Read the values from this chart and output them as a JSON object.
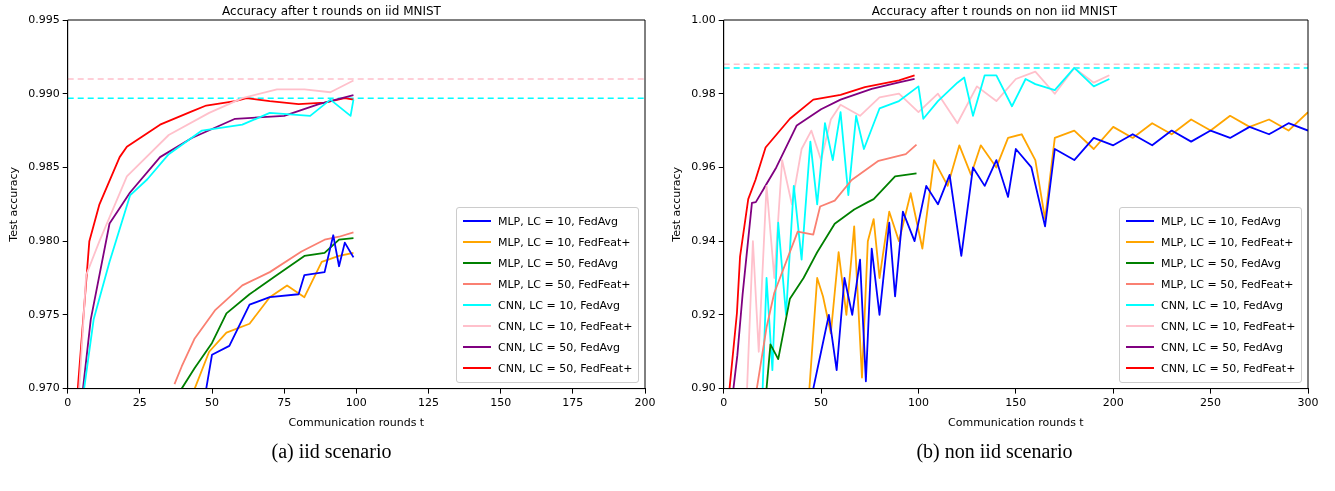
{
  "chart_data": [
    {
      "type": "line",
      "title": "Accuracy after t rounds on iid MNIST",
      "xlabel": "Communication rounds t",
      "ylabel": "Test accuracy",
      "annotations": [
        "(a) iid scenario"
      ],
      "xlim": [
        0,
        200
      ],
      "xticks": [
        0,
        25,
        50,
        75,
        100,
        125,
        150,
        175,
        200
      ],
      "ylim": [
        0.97,
        0.995
      ],
      "yticks": [
        {
          "value": 0.97,
          "label": "0.970"
        },
        {
          "value": 0.975,
          "label": "0.975"
        },
        {
          "value": 0.98,
          "label": "0.980"
        },
        {
          "value": 0.985,
          "label": "0.985"
        },
        {
          "value": 0.99,
          "label": "0.990"
        },
        {
          "value": 0.995,
          "label": "0.995"
        }
      ],
      "grid": false,
      "legend": "bottom right",
      "marker": "none",
      "line_style": "solid",
      "ref_lines": [
        {
          "axis": "y",
          "value": 0.991,
          "label": null,
          "color": "#ffc0cb",
          "line_style": "dashed"
        },
        {
          "axis": "y",
          "value": 0.9897,
          "label": null,
          "color": "#00ffff",
          "line_style": "dashed"
        }
      ],
      "series": [
        {
          "name": "MLP, LC = 10, FedAvg",
          "color": "#0000ff",
          "x": [
            48,
            50,
            56,
            63,
            70,
            80,
            82,
            89,
            92,
            94,
            96,
            99
          ],
          "values": [
            0.97,
            0.9723,
            0.9729,
            0.9757,
            0.9762,
            0.9764,
            0.9777,
            0.9779,
            0.9804,
            0.9783,
            0.9799,
            0.9789
          ]
        },
        {
          "name": "MLP, LC = 10, FedFeat+",
          "color": "#ffa500",
          "x": [
            44,
            49,
            55,
            63,
            70,
            76,
            82,
            88,
            94,
            99
          ],
          "values": [
            0.97,
            0.9725,
            0.9738,
            0.9744,
            0.9762,
            0.977,
            0.9762,
            0.9786,
            0.979,
            0.9792
          ]
        },
        {
          "name": "MLP, LC = 50, FedAvg",
          "color": "#008000",
          "x": [
            39.5,
            44,
            50,
            55,
            63,
            72.5,
            82,
            89,
            94,
            99
          ],
          "values": [
            0.97,
            0.9714,
            0.9731,
            0.9751,
            0.9764,
            0.9777,
            0.979,
            0.9792,
            0.9801,
            0.9802
          ]
        },
        {
          "name": "MLP, LC = 50, FedFeat+",
          "color": "#fa8072",
          "x": [
            37,
            39.5,
            44,
            51,
            60.5,
            70,
            81,
            89,
            94,
            99
          ],
          "values": [
            0.9703,
            0.9715,
            0.9734,
            0.9753,
            0.977,
            0.9779,
            0.9793,
            0.9801,
            0.9803,
            0.9806
          ]
        },
        {
          "name": "CNN, LC = 10, FedAvg",
          "color": "#00ffff",
          "x": [
            5.7,
            9,
            14.5,
            21.6,
            27.6,
            35,
            46.5,
            60.5,
            70,
            84,
            91,
            98,
            99
          ],
          "values": [
            0.97,
            0.9747,
            0.9786,
            0.9831,
            0.9842,
            0.9859,
            0.9875,
            0.9879,
            0.9887,
            0.9885,
            0.9896,
            0.9885,
            0.9896
          ]
        },
        {
          "name": "CNN, LC = 10, FedFeat+",
          "color": "#ffc0cb",
          "x": [
            4,
            6.4,
            11,
            20.5,
            35,
            49,
            60.5,
            72.5,
            82,
            91,
            99
          ],
          "values": [
            0.97,
            0.9777,
            0.98,
            0.9844,
            0.9872,
            0.9887,
            0.9897,
            0.9903,
            0.9903,
            0.9901,
            0.9909
          ]
        },
        {
          "name": "CNN, LC = 50, FedAvg",
          "color": "#800080",
          "x": [
            5.3,
            8,
            14.5,
            21.6,
            32,
            43,
            58,
            75,
            87,
            99
          ],
          "values": [
            0.97,
            0.9747,
            0.9812,
            0.9833,
            0.9857,
            0.987,
            0.9883,
            0.9885,
            0.9893,
            0.9899
          ]
        },
        {
          "name": "CNN, LC = 50, FedFeat+",
          "color": "#ff0000",
          "x": [
            3.5,
            7.5,
            11,
            18,
            20.5,
            32,
            43,
            48,
            58,
            62,
            70,
            80,
            89,
            96,
            99
          ],
          "values": [
            0.97,
            0.98,
            0.9825,
            0.9857,
            0.9864,
            0.9879,
            0.9888,
            0.9892,
            0.9895,
            0.9897,
            0.9895,
            0.9893,
            0.9894,
            0.9897,
            0.9896
          ]
        }
      ]
    },
    {
      "type": "line",
      "title": "Accuracy after t rounds on non iid MNIST",
      "xlabel": "Communication rounds t",
      "ylabel": "Test accuracy",
      "annotations": [
        "(b) non iid scenario"
      ],
      "xlim": [
        0,
        300
      ],
      "xticks": [
        0,
        50,
        100,
        150,
        200,
        250,
        300
      ],
      "ylim": [
        0.9,
        1.0
      ],
      "yticks": [
        {
          "value": 0.9,
          "label": "0.90"
        },
        {
          "value": 0.92,
          "label": "0.92"
        },
        {
          "value": 0.94,
          "label": "0.94"
        },
        {
          "value": 0.96,
          "label": "0.96"
        },
        {
          "value": 0.98,
          "label": "0.98"
        },
        {
          "value": 1.0,
          "label": "1.00"
        }
      ],
      "grid": false,
      "legend": "bottom right",
      "marker": "none",
      "line_style": "solid",
      "ref_lines": [
        {
          "axis": "y",
          "value": 0.988,
          "label": null,
          "color": "#ffc0cb",
          "line_style": "dashed"
        },
        {
          "axis": "y",
          "value": 0.987,
          "label": null,
          "color": "#00ffff",
          "line_style": "dashed"
        }
      ],
      "series": [
        {
          "name": "MLP, LC = 10, FedAvg",
          "color": "#0000ff",
          "x": [
            46,
            50,
            54,
            58,
            62,
            66,
            70,
            73,
            76,
            80,
            85,
            88,
            92,
            98,
            104,
            110,
            116,
            122,
            128,
            134,
            140,
            146,
            150,
            158,
            165,
            170,
            180,
            190,
            200,
            210,
            220,
            230,
            240,
            250,
            260,
            270,
            280,
            290,
            300
          ],
          "values": [
            0.9,
            0.91,
            0.92,
            0.905,
            0.93,
            0.92,
            0.935,
            0.902,
            0.938,
            0.92,
            0.945,
            0.925,
            0.948,
            0.94,
            0.955,
            0.95,
            0.958,
            0.936,
            0.96,
            0.955,
            0.962,
            0.952,
            0.965,
            0.96,
            0.944,
            0.965,
            0.962,
            0.968,
            0.966,
            0.969,
            0.966,
            0.97,
            0.967,
            0.97,
            0.968,
            0.971,
            0.969,
            0.972,
            0.97
          ]
        },
        {
          "name": "MLP, LC = 10, FedFeat+",
          "color": "#ffa500",
          "x": [
            44,
            48,
            51,
            55,
            59,
            63,
            67,
            71,
            74,
            77,
            80,
            85,
            90,
            96,
            102,
            108,
            115,
            121,
            127,
            132,
            140,
            146,
            153,
            160,
            165,
            170,
            180,
            190,
            200,
            210,
            220,
            230,
            240,
            250,
            260,
            270,
            280,
            290,
            300
          ],
          "values": [
            0.9,
            0.93,
            0.925,
            0.915,
            0.937,
            0.92,
            0.944,
            0.903,
            0.94,
            0.946,
            0.93,
            0.948,
            0.94,
            0.953,
            0.938,
            0.962,
            0.955,
            0.966,
            0.958,
            0.966,
            0.96,
            0.968,
            0.969,
            0.962,
            0.946,
            0.968,
            0.97,
            0.965,
            0.971,
            0.968,
            0.972,
            0.969,
            0.973,
            0.97,
            0.974,
            0.971,
            0.973,
            0.97,
            0.975
          ]
        },
        {
          "name": "MLP, LC = 50, FedAvg",
          "color": "#008000",
          "x": [
            22,
            24,
            28,
            34,
            41,
            48,
            57,
            67,
            74,
            77,
            88,
            99
          ],
          "values": [
            0.9,
            0.912,
            0.908,
            0.9244,
            0.93,
            0.937,
            0.9447,
            0.9486,
            0.9506,
            0.9514,
            0.9576,
            0.9584
          ]
        },
        {
          "name": "MLP, LC = 50, FedFeat+",
          "color": "#fa8072",
          "x": [
            17,
            22,
            26,
            38,
            46,
            49.5,
            57,
            65.7,
            79.5,
            93.5,
            99
          ],
          "values": [
            0.9,
            0.9166,
            0.926,
            0.9426,
            0.9418,
            0.9494,
            0.951,
            0.9566,
            0.9618,
            0.9636,
            0.9662
          ]
        },
        {
          "name": "CNN, LC = 10, FedAvg",
          "color": "#00ffff",
          "x": [
            20,
            22,
            25,
            28,
            32,
            36,
            40,
            44.5,
            48,
            52,
            56,
            60,
            64,
            68,
            72,
            80,
            90,
            100,
            102.5,
            110,
            120,
            123.5,
            128,
            134,
            140,
            148,
            155,
            160,
            170,
            180,
            190,
            198
          ],
          "values": [
            0.9,
            0.93,
            0.905,
            0.945,
            0.92,
            0.955,
            0.935,
            0.967,
            0.95,
            0.972,
            0.962,
            0.975,
            0.9525,
            0.974,
            0.965,
            0.976,
            0.978,
            0.982,
            0.9732,
            0.978,
            0.983,
            0.9844,
            0.974,
            0.985,
            0.985,
            0.9766,
            0.984,
            0.9826,
            0.981,
            0.987,
            0.982,
            0.984
          ]
        },
        {
          "name": "CNN, LC = 10, FedFeat+",
          "color": "#ffc0cb",
          "x": [
            12,
            15,
            18,
            22,
            26,
            30,
            35,
            40,
            45,
            50,
            55,
            60,
            70,
            80,
            90,
            100,
            110,
            120,
            130,
            140,
            150,
            160,
            170,
            180,
            190,
            198
          ],
          "values": [
            0.9,
            0.94,
            0.91,
            0.955,
            0.93,
            0.962,
            0.95,
            0.965,
            0.97,
            0.962,
            0.973,
            0.977,
            0.974,
            0.979,
            0.98,
            0.975,
            0.98,
            0.972,
            0.982,
            0.978,
            0.984,
            0.986,
            0.98,
            0.987,
            0.983,
            0.985
          ]
        },
        {
          "name": "CNN, LC = 50, FedAvg",
          "color": "#800080",
          "x": [
            5,
            7,
            9.7,
            14.5,
            16.5,
            27,
            37.5,
            50,
            60,
            76,
            90,
            98
          ],
          "values": [
            0.9,
            0.909,
            0.9255,
            0.9504,
            0.9506,
            0.96,
            0.9714,
            0.9758,
            0.9784,
            0.9813,
            0.9831,
            0.984
          ]
        },
        {
          "name": "CNN, LC = 50, FedFeat+",
          "color": "#ff0000",
          "x": [
            3,
            6.8,
            8.4,
            12.6,
            16.3,
            21.5,
            34,
            46,
            60,
            72.5,
            90,
            98
          ],
          "values": [
            0.9,
            0.9205,
            0.9358,
            0.9514,
            0.9566,
            0.9654,
            0.9732,
            0.9784,
            0.9797,
            0.9818,
            0.9836,
            0.985
          ]
        }
      ]
    }
  ]
}
